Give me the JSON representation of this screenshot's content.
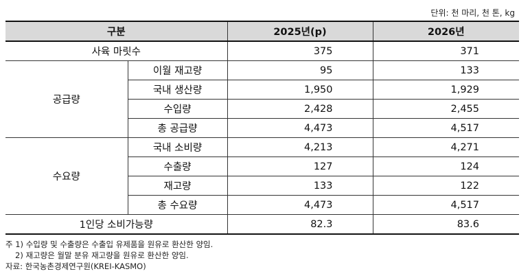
{
  "unit_label": "단위: 천 마리, 천 톤, kg",
  "headers": [
    "구분",
    "2025년(p)",
    "2026년"
  ],
  "rows": {
    "slaughter": {
      "label": "사육 마릿수",
      "v2025": "375",
      "v2026": "371"
    },
    "supply": {
      "group": "공급량",
      "items": [
        {
          "label": "이월 재고량",
          "v2025": "95",
          "v2026": "133"
        },
        {
          "label": "국내 생산량",
          "v2025": "1,950",
          "v2026": "1,929"
        },
        {
          "label": "수입량",
          "v2025": "2,428",
          "v2026": "2,455"
        },
        {
          "label": "총 공급량",
          "v2025": "4,473",
          "v2026": "4,517"
        }
      ]
    },
    "demand": {
      "group": "수요량",
      "items": [
        {
          "label": "국내 소비량",
          "v2025": "4,213",
          "v2026": "4,271"
        },
        {
          "label": "수출량",
          "v2025": "127",
          "v2026": "124"
        },
        {
          "label": "재고량",
          "v2025": "133",
          "v2026": "122"
        },
        {
          "label": "총 수요량",
          "v2025": "4,473",
          "v2026": "4,517"
        }
      ]
    },
    "per_capita": {
      "label": "1인당 소비가능량",
      "v2025": "82.3",
      "v2026": "83.6"
    }
  },
  "notes": {
    "note1": "주 1) 수입량 및 수출량은 수출입 유제품을 원유로 환산한 양임.",
    "note2": "2) 재고량은 월말 분유 재고량을 원유로 환산한 양임.",
    "source": "자료: 한국농촌경제연구원(KREI-KASMO)"
  }
}
